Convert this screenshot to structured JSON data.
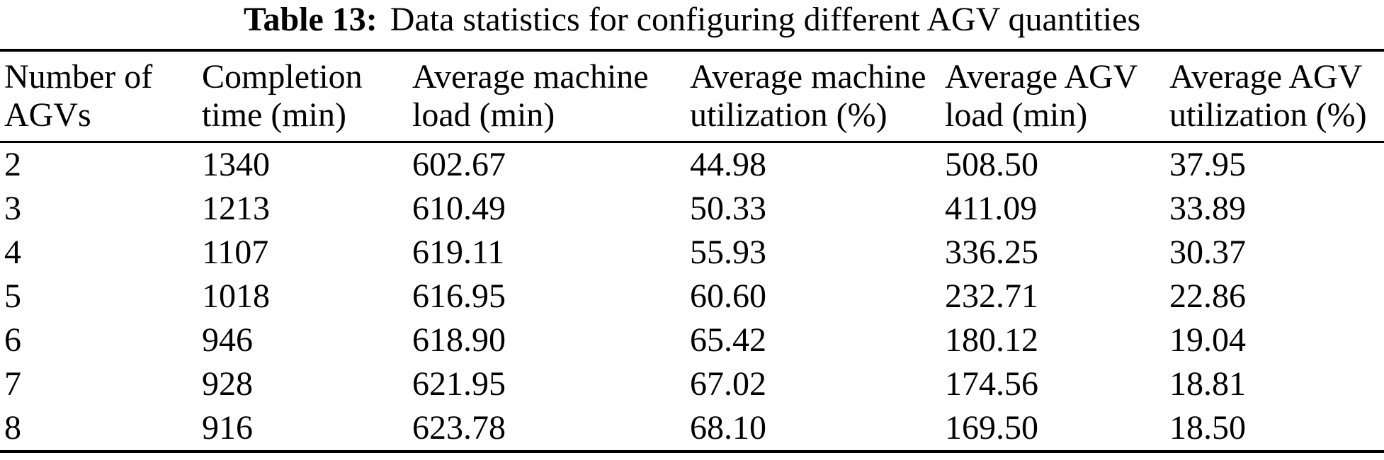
{
  "caption": {
    "label": "Table 13:",
    "text": "Data statistics for configuring different AGV quantities"
  },
  "table": {
    "columns": [
      {
        "line1": "Number of",
        "line2": "AGVs"
      },
      {
        "line1": "Completion",
        "line2": "time (min)"
      },
      {
        "line1": "Average machine",
        "line2": "load (min)"
      },
      {
        "line1": "Average machine",
        "line2": "utilization (%)"
      },
      {
        "line1": "Average AGV",
        "line2": "load (min)"
      },
      {
        "line1": "Average AGV",
        "line2": "utilization (%)"
      }
    ],
    "rows": [
      [
        "2",
        "1340",
        "602.67",
        "44.98",
        "508.50",
        "37.95"
      ],
      [
        "3",
        "1213",
        "610.49",
        "50.33",
        "411.09",
        "33.89"
      ],
      [
        "4",
        "1107",
        "619.11",
        "55.93",
        "336.25",
        "30.37"
      ],
      [
        "5",
        "1018",
        "616.95",
        "60.60",
        "232.71",
        "22.86"
      ],
      [
        "6",
        "946",
        "618.90",
        "65.42",
        "180.12",
        "19.04"
      ],
      [
        "7",
        "928",
        "621.95",
        "67.02",
        "174.56",
        "18.81"
      ],
      [
        "8",
        "916",
        "623.78",
        "68.10",
        "169.50",
        "18.50"
      ]
    ]
  },
  "colors": {
    "text": "#000000",
    "rule": "#000000",
    "background": "#ffffff"
  }
}
